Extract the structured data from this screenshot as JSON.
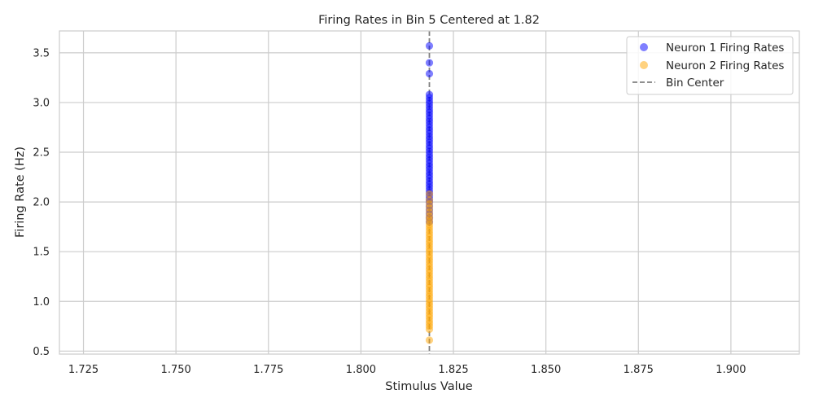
{
  "chart_data": {
    "type": "scatter",
    "title": "Firing Rates in Bin 5 Centered at 1.82",
    "xlabel": "Stimulus Value",
    "ylabel": "Firing Rate (Hz)",
    "xlim": [
      1.7185,
      1.9185
    ],
    "ylim": [
      0.47,
      3.72
    ],
    "xticks": [
      "1.725",
      "1.750",
      "1.775",
      "1.800",
      "1.825",
      "1.850",
      "1.875",
      "1.900"
    ],
    "yticks": [
      "0.5",
      "1.0",
      "1.5",
      "2.0",
      "2.5",
      "3.0",
      "3.5"
    ],
    "grid": true,
    "legend_position": "top-right",
    "bin_center": {
      "name": "Bin Center",
      "x": 1.8185,
      "color": "#808080",
      "style": "dashed"
    },
    "series": [
      {
        "name": "Neuron 1 Firing Rates",
        "color": "#0000ff",
        "x": 1.8185,
        "y": [
          3.57,
          3.4,
          3.29,
          3.08,
          3.05,
          3.02,
          2.99,
          2.96,
          2.93,
          2.9,
          2.87,
          2.84,
          2.81,
          2.78,
          2.75,
          2.72,
          2.69,
          2.66,
          2.63,
          2.6,
          2.57,
          2.54,
          2.51,
          2.48,
          2.45,
          2.42,
          2.39,
          2.36,
          2.33,
          2.3,
          2.27,
          2.24,
          2.21,
          2.18,
          2.15,
          2.12,
          2.09,
          2.06,
          2.03,
          2.0,
          1.96,
          1.92,
          1.88,
          1.84,
          1.8
        ]
      },
      {
        "name": "Neuron 2 Firing Rates",
        "color": "#ffa500",
        "x": 1.8185,
        "y": [
          2.08,
          2.02,
          1.98,
          1.94,
          1.9,
          1.86,
          1.83,
          1.8,
          1.77,
          1.74,
          1.71,
          1.68,
          1.65,
          1.62,
          1.59,
          1.56,
          1.53,
          1.5,
          1.47,
          1.44,
          1.41,
          1.38,
          1.35,
          1.32,
          1.29,
          1.26,
          1.23,
          1.2,
          1.17,
          1.14,
          1.11,
          1.08,
          1.05,
          1.02,
          0.99,
          0.96,
          0.93,
          0.9,
          0.87,
          0.84,
          0.81,
          0.78,
          0.75,
          0.72,
          0.61
        ]
      }
    ]
  }
}
